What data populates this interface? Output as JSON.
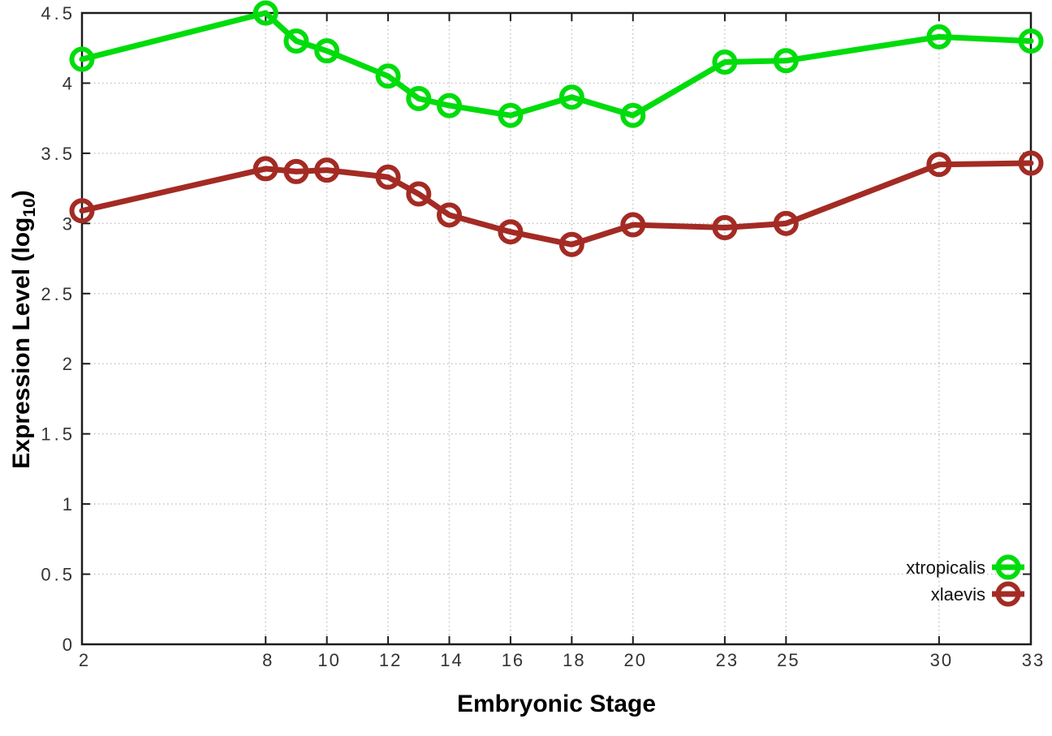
{
  "chart_data": {
    "type": "line",
    "title": "",
    "xlabel": "Embryonic Stage",
    "ylabel": "Expression Level (log10)",
    "ylabel_parts": {
      "prefix": "Expression Level (log",
      "subscript": "10",
      "suffix": ")"
    },
    "x": [
      2,
      8,
      9,
      10,
      12,
      13,
      14,
      16,
      18,
      20,
      23,
      25,
      30,
      33
    ],
    "series": [
      {
        "name": "xtropicalis",
        "color": "#00dc0c",
        "values": [
          4.17,
          4.5,
          4.3,
          4.23,
          4.05,
          3.89,
          3.84,
          3.77,
          3.9,
          3.77,
          4.15,
          4.16,
          4.33,
          4.3
        ]
      },
      {
        "name": "xlaevis",
        "color": "#a32b24",
        "values": [
          3.09,
          3.39,
          3.37,
          3.38,
          3.33,
          3.21,
          3.06,
          2.94,
          2.85,
          2.99,
          2.97,
          3.0,
          3.42,
          3.43
        ]
      }
    ],
    "xlim": [
      2,
      33
    ],
    "ylim": [
      0,
      4.5
    ],
    "x_ticks": [
      2,
      8,
      10,
      12,
      14,
      16,
      18,
      20,
      23,
      25,
      30,
      33
    ],
    "y_ticks": [
      0,
      0.5,
      1,
      1.5,
      2,
      2.5,
      3,
      3.5,
      4,
      4.5
    ],
    "grid": true,
    "marker": "open-circle",
    "legend_position": "bottom-right"
  },
  "style": {
    "background": "#ffffff",
    "axis_color": "#1c1c1c",
    "grid_color": "#c0c0c0",
    "tick_label_color": "#333333",
    "title_color": "#000000"
  }
}
